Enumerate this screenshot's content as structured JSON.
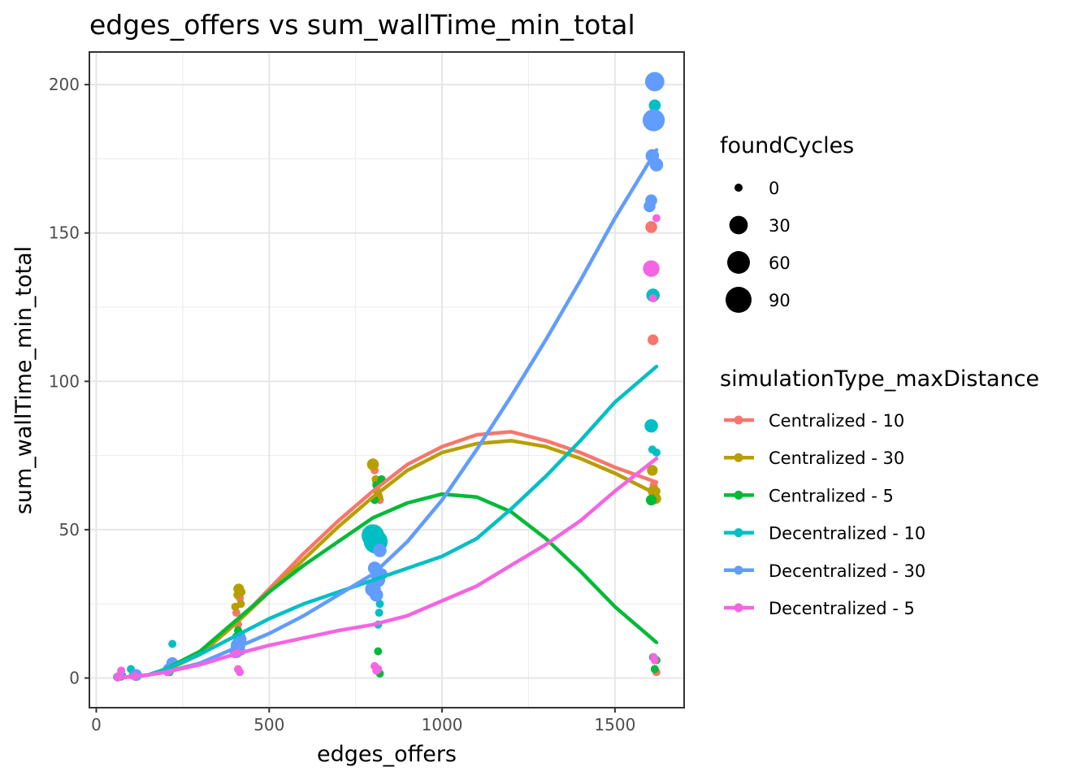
{
  "chart_data": {
    "type": "scatter",
    "title": "edges_offers  vs  sum_wallTime_min_total",
    "xlabel": "edges_offers",
    "ylabel": "sum_wallTime_min_total",
    "xlim": [
      -20,
      1700
    ],
    "ylim": [
      -10,
      211
    ],
    "x_ticks": [
      0,
      500,
      1000,
      1500
    ],
    "x_tick_labels": [
      "0",
      "500",
      "1000",
      "1500"
    ],
    "y_ticks": [
      0,
      50,
      100,
      150,
      200
    ],
    "y_tick_labels": [
      "0",
      "50",
      "100",
      "150",
      "200"
    ],
    "grid": true,
    "legend_position": "right",
    "size_legend": {
      "title": "foundCycles",
      "values": [
        0,
        30,
        60,
        90
      ],
      "labels": [
        "0",
        "30",
        "60",
        "90"
      ]
    },
    "color_legend": {
      "title": "simulationType_maxDistance"
    },
    "series": [
      {
        "name": "Centralized - 10",
        "color": "#F8766D",
        "points": [
          [
            62,
            0.3,
            0
          ],
          [
            70,
            0.6,
            0
          ],
          [
            105,
            0.8,
            0
          ],
          [
            110,
            1,
            0
          ],
          [
            205,
            2.5,
            0
          ],
          [
            215,
            4,
            0
          ],
          [
            220,
            5,
            0
          ],
          [
            405,
            22,
            0
          ],
          [
            410,
            18,
            0
          ],
          [
            415,
            27,
            0
          ],
          [
            420,
            14,
            0
          ],
          [
            805,
            70,
            0
          ],
          [
            810,
            66,
            0
          ],
          [
            815,
            62,
            0
          ],
          [
            820,
            60,
            0
          ],
          [
            1605,
            152,
            4
          ],
          [
            1610,
            114,
            2
          ],
          [
            1612,
            65,
            0
          ],
          [
            1615,
            63,
            0
          ],
          [
            1620,
            2,
            0
          ]
        ],
        "smooth": [
          [
            60,
            0
          ],
          [
            150,
            1
          ],
          [
            200,
            2.5
          ],
          [
            300,
            8
          ],
          [
            400,
            18
          ],
          [
            500,
            30
          ],
          [
            600,
            42
          ],
          [
            700,
            53
          ],
          [
            800,
            63
          ],
          [
            900,
            72
          ],
          [
            1000,
            78
          ],
          [
            1100,
            82
          ],
          [
            1200,
            83
          ],
          [
            1300,
            80
          ],
          [
            1400,
            76
          ],
          [
            1500,
            71
          ],
          [
            1620,
            66
          ]
        ]
      },
      {
        "name": "Centralized - 30",
        "color": "#B79F00",
        "points": [
          [
            60,
            0.4,
            0
          ],
          [
            68,
            0.7,
            0
          ],
          [
            108,
            1,
            0
          ],
          [
            210,
            3,
            0
          ],
          [
            218,
            4,
            0
          ],
          [
            402,
            24,
            0
          ],
          [
            408,
            28,
            0
          ],
          [
            412,
            30,
            2
          ],
          [
            418,
            25,
            0
          ],
          [
            420,
            29,
            0
          ],
          [
            800,
            72,
            4
          ],
          [
            808,
            67,
            0
          ],
          [
            812,
            63,
            0
          ],
          [
            818,
            61,
            0
          ],
          [
            1608,
            70,
            2
          ],
          [
            1612,
            63,
            4
          ],
          [
            1618,
            60.5,
            2
          ],
          [
            1620,
            63,
            0
          ]
        ],
        "smooth": [
          [
            60,
            0
          ],
          [
            150,
            1
          ],
          [
            200,
            2.5
          ],
          [
            300,
            8
          ],
          [
            400,
            18
          ],
          [
            500,
            29
          ],
          [
            600,
            40
          ],
          [
            700,
            51
          ],
          [
            800,
            61
          ],
          [
            900,
            70
          ],
          [
            1000,
            76
          ],
          [
            1100,
            79
          ],
          [
            1200,
            80
          ],
          [
            1300,
            78
          ],
          [
            1400,
            74
          ],
          [
            1500,
            69
          ],
          [
            1620,
            62
          ]
        ]
      },
      {
        "name": "Centralized - 5",
        "color": "#00BA38",
        "points": [
          [
            62,
            0.2,
            0
          ],
          [
            72,
            0.5,
            0
          ],
          [
            112,
            0.8,
            0
          ],
          [
            212,
            2,
            0
          ],
          [
            222,
            3.5,
            0
          ],
          [
            405,
            14,
            0
          ],
          [
            410,
            16,
            0
          ],
          [
            415,
            12,
            0
          ],
          [
            418,
            10,
            0
          ],
          [
            805,
            60,
            0
          ],
          [
            810,
            65,
            0
          ],
          [
            815,
            9,
            0
          ],
          [
            820,
            1.5,
            0
          ],
          [
            825,
            67,
            0
          ],
          [
            1605,
            60,
            2
          ],
          [
            1610,
            7,
            0
          ],
          [
            1615,
            3,
            0
          ],
          [
            1620,
            6,
            0
          ]
        ],
        "smooth": [
          [
            60,
            0
          ],
          [
            150,
            1
          ],
          [
            200,
            3
          ],
          [
            300,
            9
          ],
          [
            400,
            19
          ],
          [
            500,
            29
          ],
          [
            600,
            38
          ],
          [
            700,
            46
          ],
          [
            800,
            54
          ],
          [
            900,
            59
          ],
          [
            1000,
            62
          ],
          [
            1100,
            61
          ],
          [
            1200,
            56
          ],
          [
            1300,
            47
          ],
          [
            1400,
            36
          ],
          [
            1500,
            24
          ],
          [
            1620,
            12
          ]
        ]
      },
      {
        "name": "Decentralized - 10",
        "color": "#00BFC4",
        "points": [
          [
            65,
            0.3,
            0
          ],
          [
            75,
            0.8,
            0
          ],
          [
            100,
            3,
            0
          ],
          [
            115,
            1,
            0
          ],
          [
            205,
            3,
            0
          ],
          [
            220,
            11.5,
            0
          ],
          [
            400,
            10,
            0
          ],
          [
            410,
            13,
            0
          ],
          [
            420,
            9,
            0
          ],
          [
            800,
            48,
            60
          ],
          [
            808,
            46,
            70
          ],
          [
            815,
            18,
            0
          ],
          [
            818,
            22,
            0
          ],
          [
            820,
            25,
            0
          ],
          [
            1605,
            85,
            8
          ],
          [
            1608,
            77,
            0
          ],
          [
            1610,
            129,
            8
          ],
          [
            1615,
            193,
            4
          ],
          [
            1620,
            76,
            0
          ]
        ],
        "smooth": [
          [
            60,
            0
          ],
          [
            150,
            1
          ],
          [
            200,
            3
          ],
          [
            300,
            8
          ],
          [
            400,
            14
          ],
          [
            500,
            20
          ],
          [
            600,
            25
          ],
          [
            700,
            29
          ],
          [
            800,
            33
          ],
          [
            900,
            37
          ],
          [
            1000,
            41
          ],
          [
            1100,
            47
          ],
          [
            1200,
            57
          ],
          [
            1300,
            68
          ],
          [
            1400,
            80
          ],
          [
            1500,
            93
          ],
          [
            1620,
            105
          ]
        ]
      },
      {
        "name": "Decentralized - 30",
        "color": "#619CFF",
        "points": [
          [
            60,
            0.3,
            0
          ],
          [
            70,
            0.6,
            0
          ],
          [
            115,
            1,
            4
          ],
          [
            210,
            3,
            4
          ],
          [
            220,
            5,
            4
          ],
          [
            405,
            9,
            8
          ],
          [
            410,
            11,
            12
          ],
          [
            415,
            13,
            8
          ],
          [
            800,
            30,
            16
          ],
          [
            805,
            37,
            8
          ],
          [
            810,
            28,
            8
          ],
          [
            815,
            33,
            10
          ],
          [
            820,
            43,
            8
          ],
          [
            825,
            35,
            4
          ],
          [
            1600,
            159,
            4
          ],
          [
            1605,
            161,
            4
          ],
          [
            1608,
            176,
            8
          ],
          [
            1612,
            188,
            55
          ],
          [
            1615,
            201,
            35
          ],
          [
            1620,
            173,
            8
          ]
        ],
        "smooth": [
          [
            60,
            0
          ],
          [
            150,
            1
          ],
          [
            200,
            2
          ],
          [
            300,
            5
          ],
          [
            400,
            10
          ],
          [
            500,
            15
          ],
          [
            600,
            21
          ],
          [
            700,
            28
          ],
          [
            800,
            35
          ],
          [
            900,
            46
          ],
          [
            1000,
            60
          ],
          [
            1100,
            77
          ],
          [
            1200,
            95
          ],
          [
            1300,
            114
          ],
          [
            1400,
            134
          ],
          [
            1500,
            155
          ],
          [
            1620,
            178
          ]
        ]
      },
      {
        "name": "Decentralized - 5",
        "color": "#F564E3",
        "points": [
          [
            62,
            0.2,
            0
          ],
          [
            66,
            0.8,
            0
          ],
          [
            72,
            2.5,
            0
          ],
          [
            112,
            0.6,
            0
          ],
          [
            205,
            2,
            0
          ],
          [
            215,
            3,
            0
          ],
          [
            400,
            8,
            0
          ],
          [
            405,
            9,
            0
          ],
          [
            410,
            3,
            0
          ],
          [
            415,
            2,
            0
          ],
          [
            805,
            4,
            0
          ],
          [
            810,
            2.5,
            0
          ],
          [
            815,
            3,
            0
          ],
          [
            1605,
            138,
            20
          ],
          [
            1610,
            128,
            0
          ],
          [
            1612,
            7,
            0
          ],
          [
            1615,
            6,
            0
          ],
          [
            1620,
            155,
            0
          ]
        ],
        "smooth": [
          [
            60,
            0
          ],
          [
            150,
            1
          ],
          [
            200,
            2
          ],
          [
            300,
            4.5
          ],
          [
            400,
            8
          ],
          [
            500,
            11
          ],
          [
            600,
            13.5
          ],
          [
            700,
            16
          ],
          [
            800,
            18
          ],
          [
            900,
            21
          ],
          [
            1000,
            26
          ],
          [
            1100,
            31
          ],
          [
            1200,
            38
          ],
          [
            1300,
            45
          ],
          [
            1400,
            53
          ],
          [
            1500,
            63
          ],
          [
            1620,
            74
          ]
        ]
      }
    ]
  }
}
